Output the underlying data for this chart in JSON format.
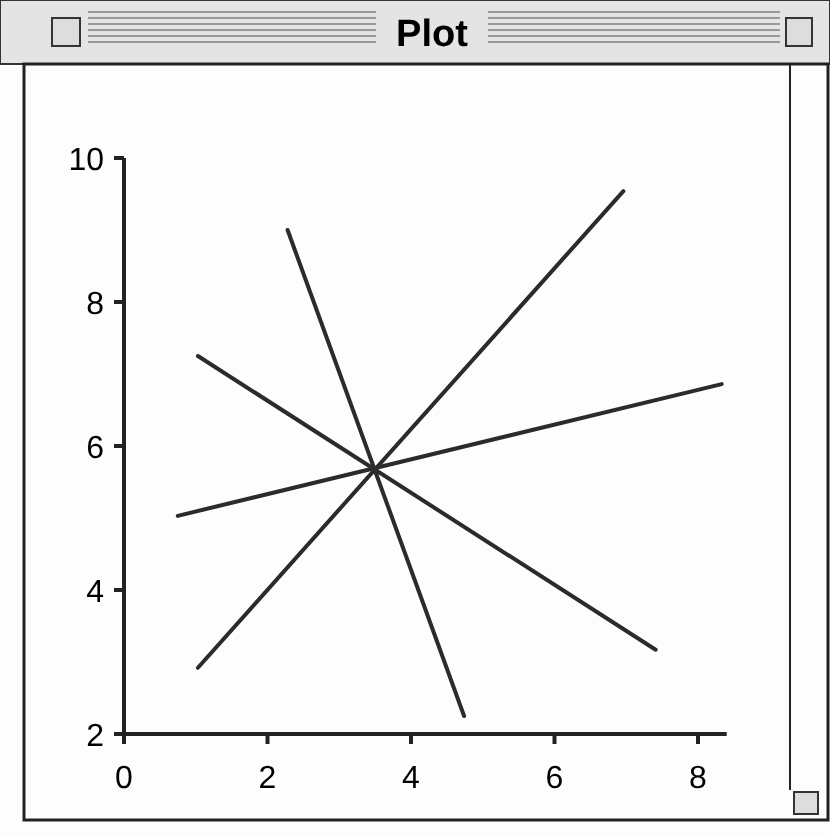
{
  "chart_data": {
    "type": "line",
    "title": "Plot",
    "xlim": [
      0,
      8.4
    ],
    "ylim": [
      2,
      10
    ],
    "xticks": [
      0,
      2,
      4,
      6,
      8
    ],
    "yticks": [
      2,
      4,
      6,
      8,
      10
    ],
    "grid": false,
    "marker": "none",
    "line_style": "solid",
    "series": [
      {
        "color": "#2b2b2b",
        "x": [
          1.03,
          6.96
        ],
        "values": [
          2.92,
          9.54
        ]
      },
      {
        "color": "#2b2b2b",
        "x": [
          0.75,
          8.33
        ],
        "values": [
          5.03,
          6.86
        ]
      },
      {
        "color": "#2b2b2b",
        "x": [
          1.03,
          7.41
        ],
        "values": [
          7.25,
          3.17
        ]
      },
      {
        "color": "#2b2b2b",
        "x": [
          2.28,
          4.74
        ],
        "values": [
          9.0,
          2.25
        ]
      }
    ]
  }
}
